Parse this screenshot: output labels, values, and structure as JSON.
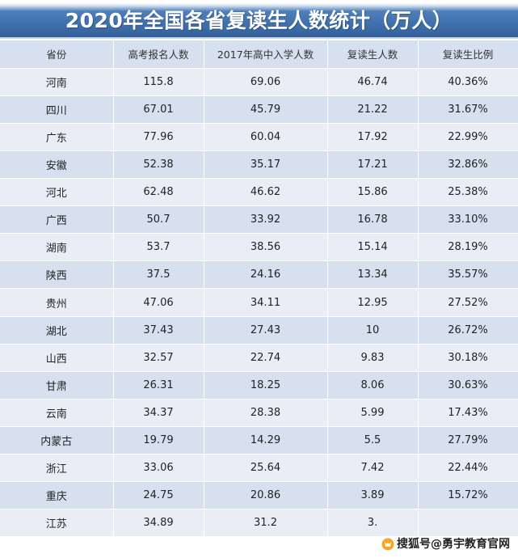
{
  "title": "2020年全国各省复读生人数统计（万人）",
  "table": {
    "headers": [
      "省份",
      "高考报名人数",
      "2017年高中入学人数",
      "复读生人数",
      "复读生比例"
    ],
    "rows": [
      [
        "河南",
        "115.8",
        "69.06",
        "46.74",
        "40.36%"
      ],
      [
        "四川",
        "67.01",
        "45.79",
        "21.22",
        "31.67%"
      ],
      [
        "广东",
        "77.96",
        "60.04",
        "17.92",
        "22.99%"
      ],
      [
        "安徽",
        "52.38",
        "35.17",
        "17.21",
        "32.86%"
      ],
      [
        "河北",
        "62.48",
        "46.62",
        "15.86",
        "25.38%"
      ],
      [
        "广西",
        "50.7",
        "33.92",
        "16.78",
        "33.10%"
      ],
      [
        "湖南",
        "53.7",
        "38.56",
        "15.14",
        "28.19%"
      ],
      [
        "陕西",
        "37.5",
        "24.16",
        "13.34",
        "35.57%"
      ],
      [
        "贵州",
        "47.06",
        "34.11",
        "12.95",
        "27.52%"
      ],
      [
        "湖北",
        "37.43",
        "27.43",
        "10",
        "26.72%"
      ],
      [
        "山西",
        "32.57",
        "22.74",
        "9.83",
        "30.18%"
      ],
      [
        "甘肃",
        "26.31",
        "18.25",
        "8.06",
        "30.63%"
      ],
      [
        "云南",
        "34.37",
        "28.38",
        "5.99",
        "17.43%"
      ],
      [
        "内蒙古",
        "19.79",
        "14.29",
        "5.5",
        "27.79%"
      ],
      [
        "浙江",
        "33.06",
        "25.64",
        "7.42",
        "22.44%"
      ],
      [
        "重庆",
        "24.75",
        "20.86",
        "3.89",
        "15.72%"
      ],
      [
        "江苏",
        "34.89",
        "31.2",
        "3.",
        ""
      ]
    ]
  },
  "watermark": {
    "text": "搜狐号@勇宇教育官网",
    "icon": "fox-logo-icon"
  },
  "colors": {
    "banner": "#3e6eaa",
    "row_light": "#e9eef6",
    "row_dark": "#d6e0ee"
  }
}
